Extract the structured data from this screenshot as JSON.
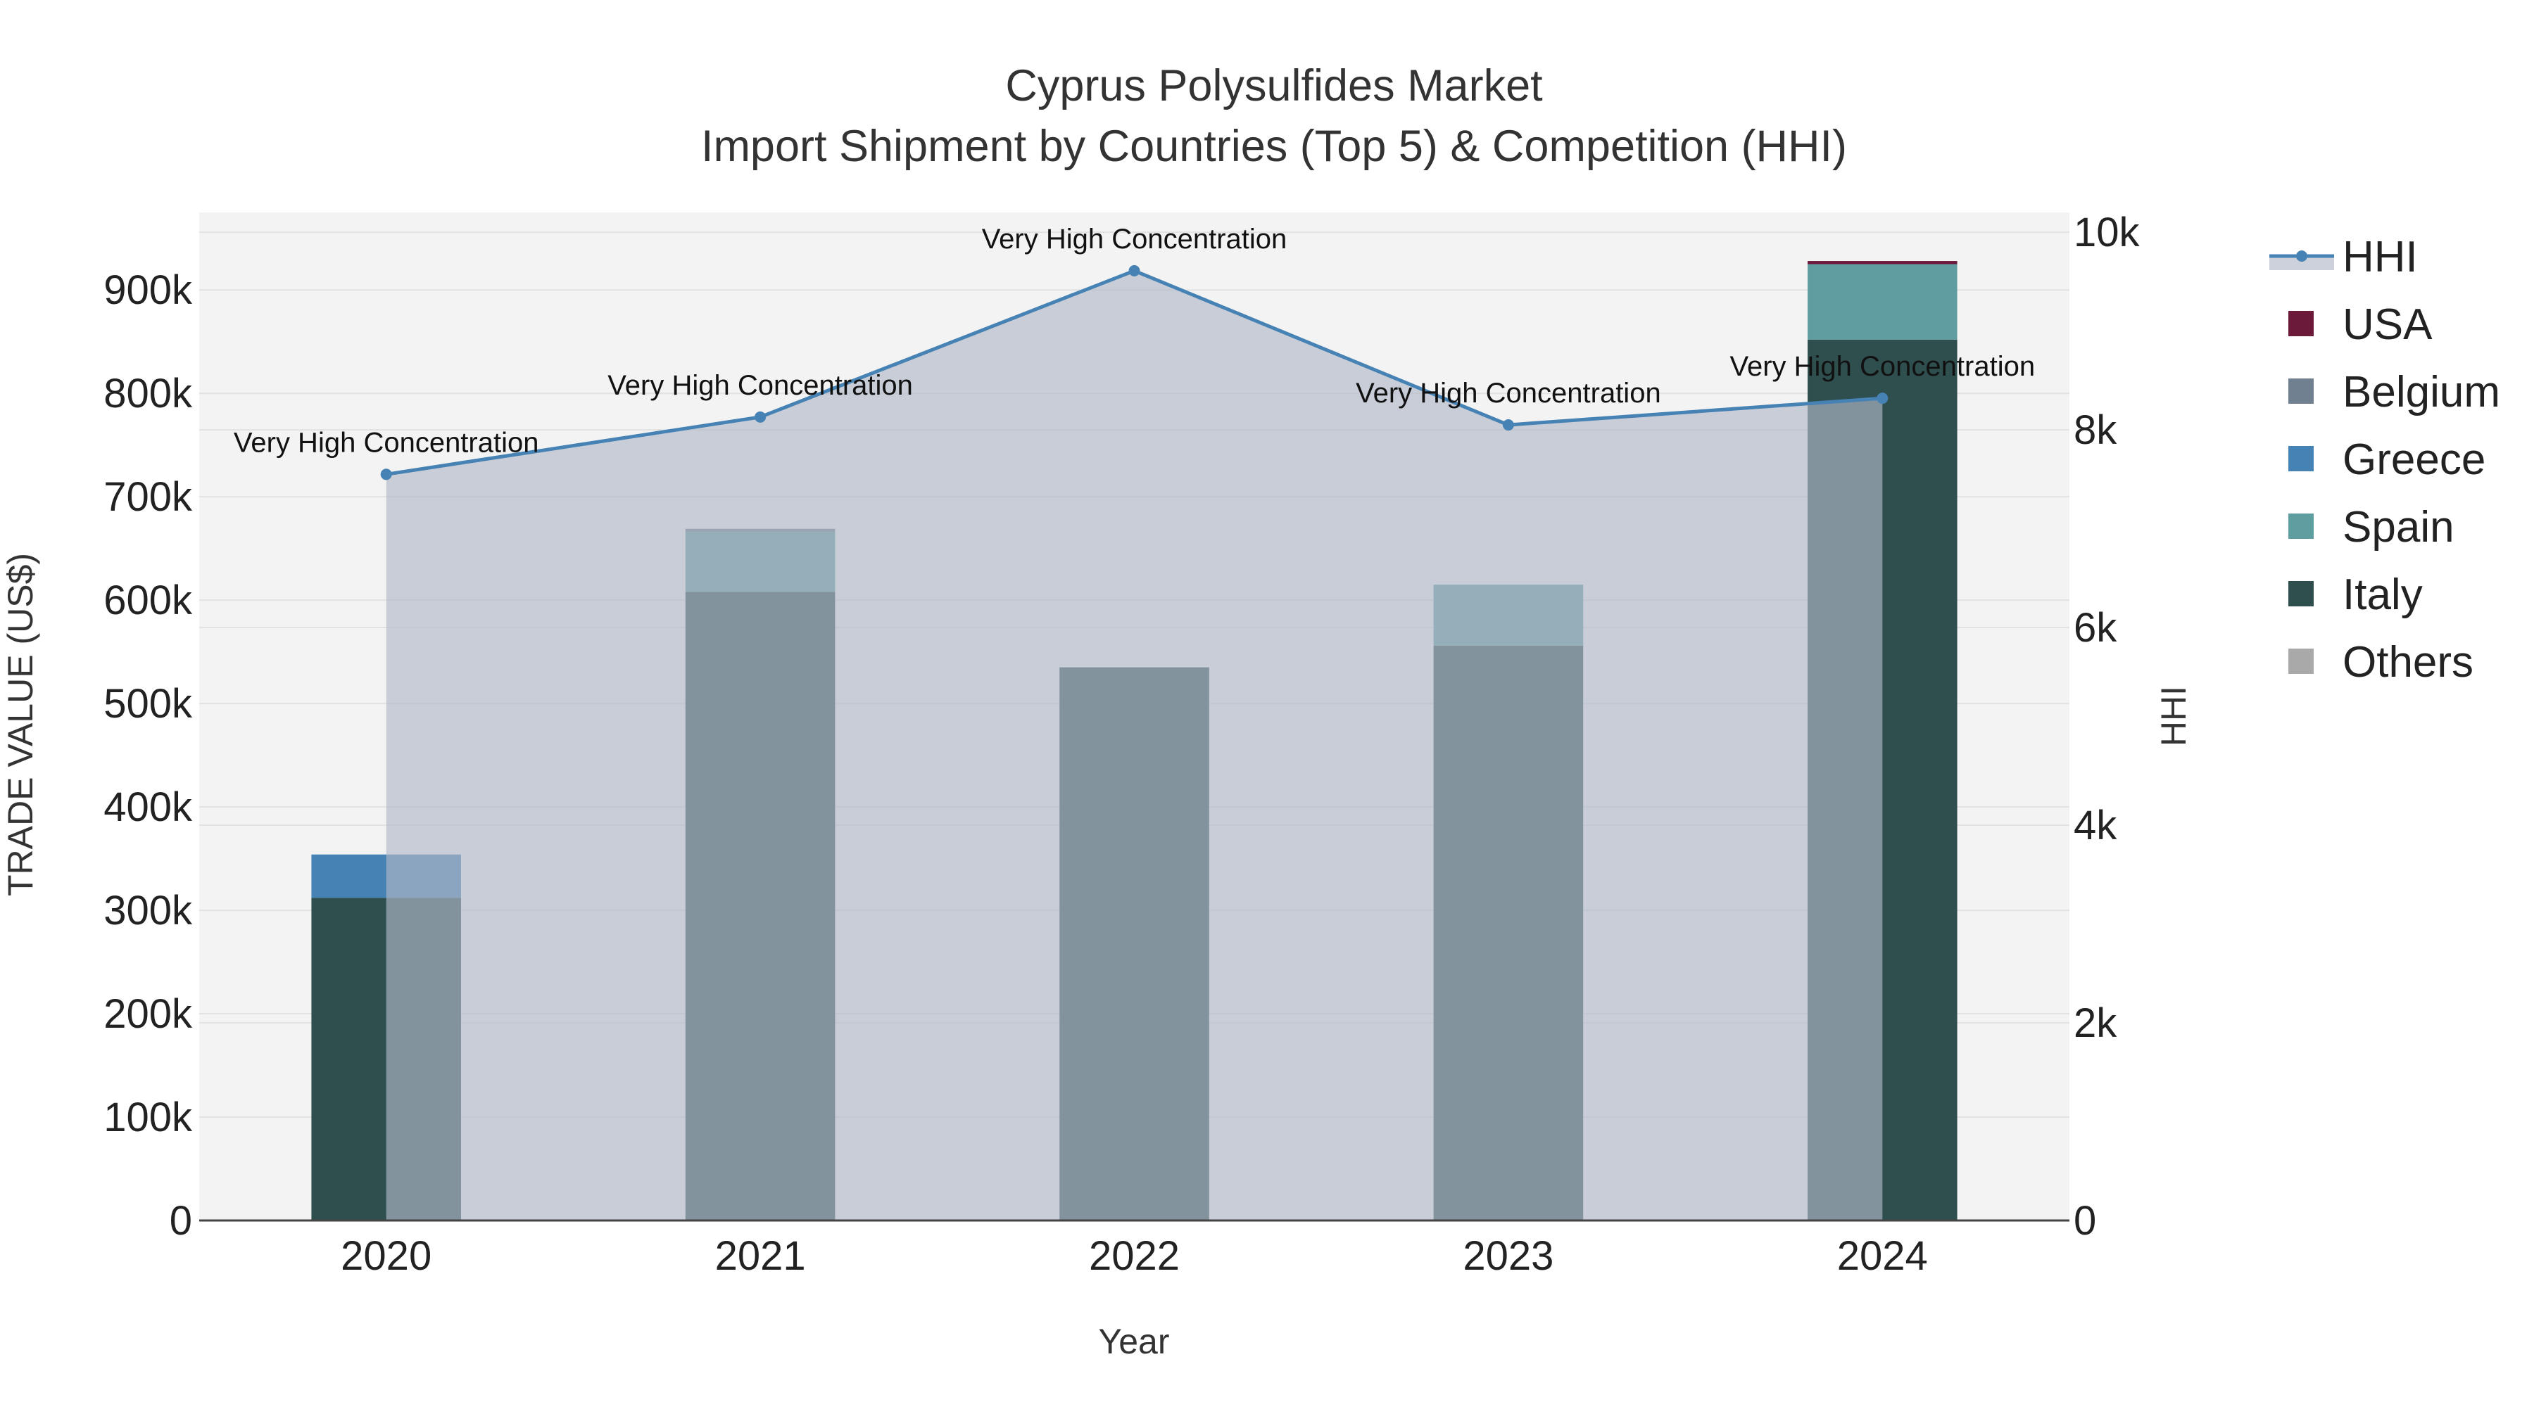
{
  "chart_data": {
    "type": "bar",
    "title": "Cyprus Polysulfides Market",
    "subtitle": "Import Shipment by Countries (Top 5) & Competition (HHI)",
    "xlabel": "Year",
    "ylabel": "TRADE VALUE (US$)",
    "y2label": "HHI",
    "categories": [
      "2020",
      "2021",
      "2022",
      "2023",
      "2024"
    ],
    "ylim": [
      0,
      975000
    ],
    "y2lim": [
      0,
      10200
    ],
    "yticks": [
      {
        "value": 0,
        "label": "0"
      },
      {
        "value": 100000,
        "label": "100k"
      },
      {
        "value": 200000,
        "label": "200k"
      },
      {
        "value": 300000,
        "label": "300k"
      },
      {
        "value": 400000,
        "label": "400k"
      },
      {
        "value": 500000,
        "label": "500k"
      },
      {
        "value": 600000,
        "label": "600k"
      },
      {
        "value": 700000,
        "label": "700k"
      },
      {
        "value": 800000,
        "label": "800k"
      },
      {
        "value": 900000,
        "label": "900k"
      }
    ],
    "y2ticks": [
      {
        "value": 0,
        "label": "0"
      },
      {
        "value": 2000,
        "label": "2k"
      },
      {
        "value": 4000,
        "label": "4k"
      },
      {
        "value": 6000,
        "label": "6k"
      },
      {
        "value": 8000,
        "label": "8k"
      },
      {
        "value": 10000,
        "label": "10k"
      }
    ],
    "grid": true,
    "legend_position": "right",
    "series": [
      {
        "name": "Italy",
        "color": "#2F4F4F",
        "values": [
          312000,
          608000,
          535000,
          556000,
          852000
        ]
      },
      {
        "name": "Spain",
        "color": "#5F9EA0",
        "values": [
          0,
          58000,
          0,
          59000,
          73000
        ]
      },
      {
        "name": "Greece",
        "color": "#4682B4",
        "values": [
          42000,
          0,
          0,
          0,
          0
        ]
      },
      {
        "name": "Belgium",
        "color": "#708090",
        "values": [
          0,
          3000,
          0,
          0,
          0
        ]
      },
      {
        "name": "USA",
        "color": "#6B1A3A",
        "values": [
          0,
          0,
          0,
          0,
          3000
        ]
      },
      {
        "name": "Others",
        "color": "#A9A9A9",
        "values": [
          0,
          0,
          0,
          0,
          0
        ]
      }
    ],
    "hhi": {
      "name": "HHI",
      "color": "#4682B4",
      "fill_color": "#B0B8C8",
      "values": [
        7550,
        8130,
        9610,
        8050,
        8320
      ],
      "annotations": [
        "Very High Concentration",
        "Very High Concentration",
        "Very High Concentration",
        "Very High Concentration",
        "Very High Concentration"
      ]
    },
    "legend_order": [
      "HHI",
      "USA",
      "Belgium",
      "Greece",
      "Spain",
      "Italy",
      "Others"
    ]
  }
}
